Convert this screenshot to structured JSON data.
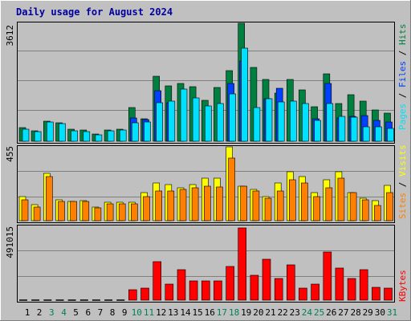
{
  "chart_data": {
    "type": "bar",
    "title": "Daily usage for August 2024",
    "days": [
      "1",
      "2",
      "3",
      "4",
      "5",
      "6",
      "7",
      "8",
      "9",
      "10",
      "11",
      "12",
      "13",
      "14",
      "15",
      "16",
      "17",
      "18",
      "19",
      "20",
      "21",
      "22",
      "23",
      "24",
      "25",
      "26",
      "27",
      "28",
      "29",
      "30",
      "31"
    ],
    "weekend_days": [
      "3",
      "4",
      "10",
      "11",
      "17",
      "18",
      "24",
      "25",
      "31"
    ],
    "panels": {
      "traffic": {
        "max_label": "3612",
        "ylim": [
          0,
          3612
        ],
        "legend": [
          "Pages",
          "Files",
          "Hits"
        ],
        "series": [
          {
            "name": "Hits",
            "color": "#008040",
            "values": [
              420,
              320,
              620,
              560,
              380,
              340,
              230,
              350,
              370,
              1020,
              690,
              1990,
              1690,
              1770,
              1680,
              1250,
              1640,
              2150,
              3612,
              2250,
              1880,
              1470,
              1880,
              1580,
              1060,
              2060,
              1150,
              1430,
              1220,
              960,
              870
            ]
          },
          {
            "name": "Files",
            "color": "#0040ff",
            "values": [
              0,
              0,
              0,
              0,
              0,
              0,
              0,
              0,
              0,
              720,
              670,
              1540,
              1180,
              0,
              0,
              0,
              0,
              1760,
              2460,
              0,
              1300,
              1620,
              0,
              0,
              690,
              1760,
              720,
              750,
              780,
              650,
              580
            ]
          },
          {
            "name": "Pages",
            "color": "#00e0ff",
            "values": [
              380,
              290,
              580,
              540,
              330,
              290,
              190,
              320,
              340,
              560,
              600,
              1180,
              1240,
              1590,
              1330,
              1080,
              1150,
              1460,
              2850,
              1030,
              1310,
              1200,
              1240,
              1150,
              630,
              1160,
              750,
              730,
              440,
              440,
              400
            ]
          }
        ]
      },
      "visits": {
        "max_label": "455",
        "ylim": [
          0,
          455
        ],
        "legend": [
          "Sites",
          "Visits"
        ],
        "series": [
          {
            "name": "Visits",
            "color": "#ffff00",
            "values": [
              148,
              101,
              291,
              128,
              118,
              123,
              84,
              113,
              113,
              113,
              172,
              234,
              223,
              202,
              222,
              263,
              263,
              455,
              212,
              192,
              150,
              234,
              303,
              271,
              172,
              252,
              303,
              172,
              138,
              124,
              219
            ]
          },
          {
            "name": "Sites",
            "color": "#ff8000",
            "values": [
              128,
              84,
              271,
              118,
              118,
              118,
              77,
              104,
              104,
              104,
              150,
              182,
              182,
              192,
              202,
              212,
              210,
              384,
              212,
              182,
              138,
              182,
              252,
              234,
              150,
              202,
              263,
              172,
              128,
              95,
              172
            ]
          }
        ]
      },
      "kbytes": {
        "max_label": "491015",
        "ylim": [
          0,
          491015
        ],
        "legend": [
          "KBytes"
        ],
        "series": [
          {
            "name": "KBytes",
            "color": "#ff0000",
            "values": [
              0,
              0,
              0,
              0,
              0,
              0,
              0,
              0,
              0,
              70000,
              80000,
              260000,
              110000,
              210000,
              130000,
              130000,
              130000,
              230000,
              491015,
              170000,
              280000,
              150000,
              240000,
              80000,
              110000,
              330000,
              220000,
              150000,
              210000,
              90000,
              80000
            ]
          }
        ]
      }
    }
  }
}
